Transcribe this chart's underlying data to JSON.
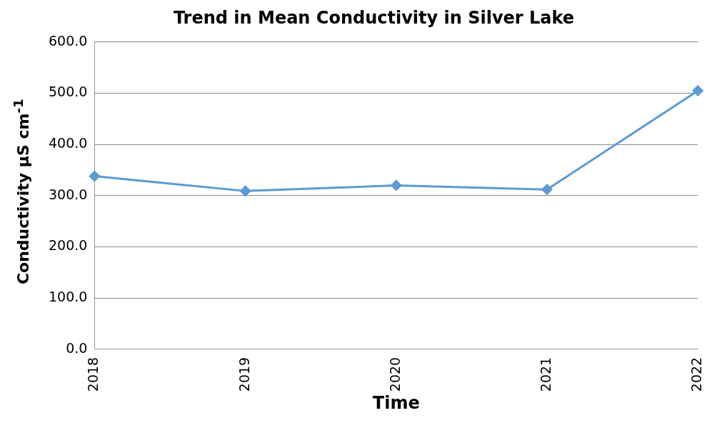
{
  "chart_data": {
    "type": "line",
    "title": "Trend in Mean Conductivity in Silver Lake",
    "xlabel": "Time",
    "ylabel": "Conductivity µS cm$^{-1}$",
    "categories": [
      "2018",
      "2019",
      "2020",
      "2021",
      "2022"
    ],
    "values": [
      338,
      309,
      320,
      312,
      505
    ],
    "color": "#5b9bd5",
    "marker": "diamond",
    "line_style": "solid",
    "ylim": [
      0,
      600
    ],
    "yticks": [
      {
        "value": 0,
        "label": "0.0"
      },
      {
        "value": 100,
        "label": "100.0"
      },
      {
        "value": 200,
        "label": "200.0"
      },
      {
        "value": 300,
        "label": "300.0"
      },
      {
        "value": 400,
        "label": "400.0"
      },
      {
        "value": 500,
        "label": "500.0"
      },
      {
        "value": 600,
        "label": "600.0"
      }
    ],
    "grid": "y"
  }
}
